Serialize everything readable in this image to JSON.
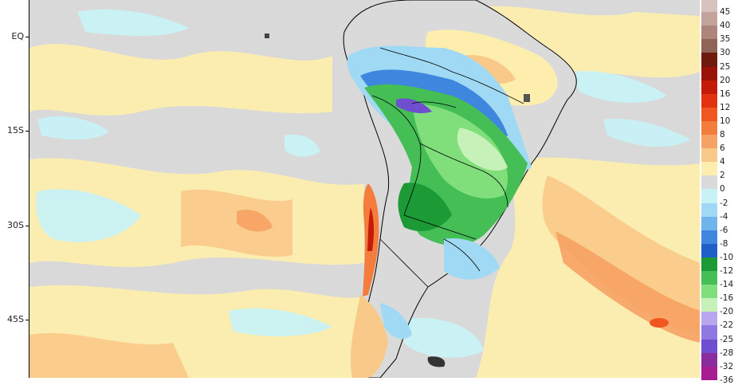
{
  "lat_labels": [
    "EQ",
    "15S",
    "30S",
    "45S"
  ],
  "legend": [
    {
      "label": "45",
      "color": "#d8c2bd"
    },
    {
      "label": "40",
      "color": "#c4a39b"
    },
    {
      "label": "35",
      "color": "#ad857b"
    },
    {
      "label": "30",
      "color": "#8f6457"
    },
    {
      "label": "25",
      "color": "#6e1a0c"
    },
    {
      "label": "20",
      "color": "#9b1306"
    },
    {
      "label": "16",
      "color": "#c41a08"
    },
    {
      "label": "12",
      "color": "#e3320f"
    },
    {
      "label": "10",
      "color": "#f0561f"
    },
    {
      "label": "8",
      "color": "#f47c3c"
    },
    {
      "label": "6",
      "color": "#f6a264"
    },
    {
      "label": "4",
      "color": "#f9c98a"
    },
    {
      "label": "2",
      "color": "#fdeeae"
    },
    {
      "label": "0",
      "color": "#dadada"
    },
    {
      "label": "-2",
      "color": "#c9f2f6"
    },
    {
      "label": "-4",
      "color": "#9fd9f3"
    },
    {
      "label": "-6",
      "color": "#6fb5ec"
    },
    {
      "label": "-8",
      "color": "#3f86de"
    },
    {
      "label": "-10",
      "color": "#1f5fc8"
    },
    {
      "label": "-12",
      "color": "#1c9a36"
    },
    {
      "label": "-14",
      "color": "#45be55"
    },
    {
      "label": "-16",
      "color": "#80de7b"
    },
    {
      "label": "-20",
      "color": "#c6f2b9"
    },
    {
      "label": "-22",
      "color": "#b9a6ef"
    },
    {
      "label": "-25",
      "color": "#8f78e2"
    },
    {
      "label": "-28",
      "color": "#6f4fcf"
    },
    {
      "label": "-32",
      "color": "#8a2c9c"
    },
    {
      "label": "-36",
      "color": "#a61e8f"
    }
  ],
  "colors": {
    "background_gray": "#d9d9d9",
    "warm_light": "#fdeeae",
    "warm_mid": "#f9c98a",
    "warm_strong": "#f6a264",
    "cold_light": "#c9f2f6",
    "cold_mid": "#9fd9f3",
    "blue": "#3f86de",
    "green_dark": "#1c9a36",
    "green_mid": "#45be55",
    "green_light": "#80de7b",
    "purple": "#6f4fcf",
    "border": "#000000"
  }
}
